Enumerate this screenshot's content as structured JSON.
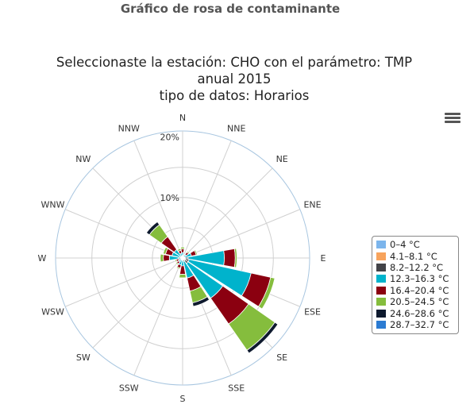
{
  "page": {
    "heading": "Gráfico de rosa de contaminante"
  },
  "menu": {
    "icon": "hamburger-menu-icon"
  },
  "chart_data": {
    "type": "windrose",
    "title_lines": [
      "Seleccionaste la estación: CHO con el parámetro: TMP",
      "anual 2015",
      "tipo de datos: Horarios"
    ],
    "directions": [
      "N",
      "NNE",
      "NE",
      "ENE",
      "E",
      "ESE",
      "SE",
      "SSE",
      "S",
      "SSW",
      "SW",
      "WSW",
      "W",
      "WNW",
      "NW",
      "NNW"
    ],
    "radial_ticks": [
      "10%",
      "20%"
    ],
    "rmax": 21,
    "series": [
      {
        "name": "0–4 °C",
        "color": "#7cb5ec",
        "values": [
          0,
          0,
          0,
          0,
          0.2,
          0.2,
          0.2,
          0,
          0,
          0,
          0,
          0,
          0,
          0,
          0,
          0
        ]
      },
      {
        "name": "4.1–8.1 °C",
        "color": "#f7a35c",
        "values": [
          0,
          0,
          0,
          0,
          0.2,
          0.3,
          0.3,
          0.2,
          0,
          0,
          0,
          0,
          0.1,
          0.1,
          0,
          0
        ]
      },
      {
        "name": "8.2–12.2 °C",
        "color": "#434348",
        "values": [
          0.3,
          0.1,
          0.3,
          0.3,
          0.5,
          0.6,
          0.6,
          0.4,
          0.3,
          0.4,
          0.3,
          0.3,
          0.6,
          0.4,
          0.2,
          0.2
        ]
      },
      {
        "name": "12.3–16.3 °C",
        "color": "#00b3cc",
        "values": [
          0.6,
          0.2,
          0.4,
          1.2,
          6.0,
          10.5,
          7.0,
          2.8,
          1.0,
          0.8,
          0.5,
          0.4,
          1.5,
          1.3,
          1.5,
          0.6
        ]
      },
      {
        "name": "16.4–20.4 °C",
        "color": "#8b0010",
        "values": [
          0.6,
          0.2,
          0.5,
          0.8,
          1.8,
          3.3,
          5.2,
          2.2,
          1.4,
          0.5,
          0.4,
          0.4,
          1.0,
          1.1,
          2.6,
          0.5
        ]
      },
      {
        "name": "20.5–24.5 °C",
        "color": "#85bd3d",
        "values": [
          0.3,
          0.1,
          0.2,
          0.2,
          0.3,
          0.7,
          5.3,
          2.0,
          0.6,
          0.2,
          0.2,
          0.2,
          0.5,
          0.4,
          2.4,
          0.3
        ]
      },
      {
        "name": "24.6–28.6 °C",
        "color": "#0e1a2e",
        "values": [
          0,
          0,
          0,
          0,
          0,
          0,
          0.6,
          0.6,
          0.1,
          0,
          0,
          0,
          0,
          0,
          0.6,
          0
        ]
      },
      {
        "name": "28.7–32.7 °C",
        "color": "#2b7bd2",
        "values": [
          0,
          0,
          0,
          0,
          0,
          0,
          0,
          0,
          0,
          0,
          0,
          0,
          0,
          0,
          0,
          0
        ]
      }
    ],
    "legend_position": "right",
    "grid": true
  }
}
